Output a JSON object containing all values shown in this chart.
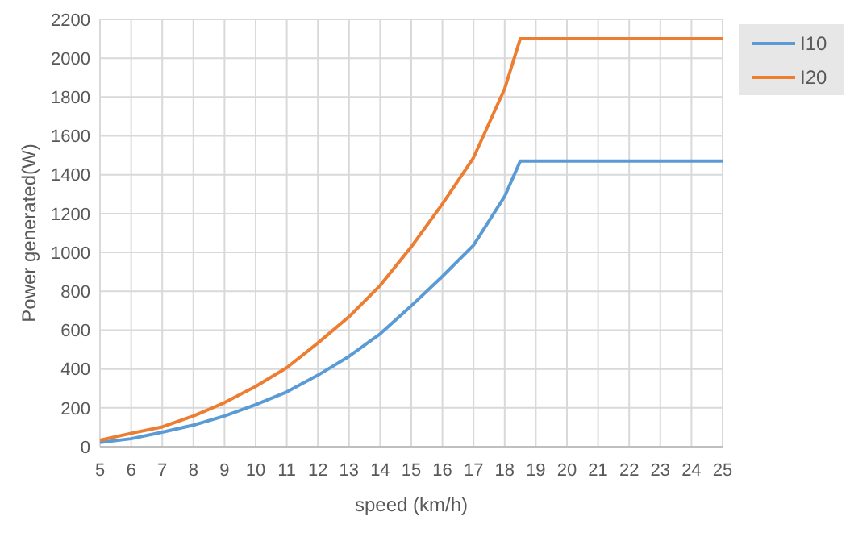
{
  "chart_data": {
    "type": "line",
    "xlabel": "speed (km/h)",
    "ylabel": "Power generated(W)",
    "xlim": [
      5,
      25
    ],
    "xticks": [
      5,
      6,
      7,
      8,
      9,
      10,
      11,
      12,
      13,
      14,
      15,
      16,
      17,
      18,
      19,
      20,
      21,
      22,
      23,
      24,
      25
    ],
    "ylim": [
      0,
      2200
    ],
    "yticks": [
      0,
      200,
      400,
      600,
      800,
      1000,
      1200,
      1400,
      1600,
      1800,
      2000,
      2200
    ],
    "grid": true,
    "legend": "top right",
    "marker": "none",
    "line_style": "solid",
    "series": [
      {
        "name": "I10",
        "color": "#5b9bd5",
        "x": [
          5,
          6,
          7,
          8,
          9,
          10,
          11,
          12,
          13,
          14,
          15,
          16,
          17,
          18,
          18.5,
          25
        ],
        "values": [
          22,
          41,
          75,
          111,
          158,
          216,
          282,
          368,
          465,
          581,
          725,
          877,
          1037,
          1289,
          1470,
          1470
        ]
      },
      {
        "name": "I20",
        "color": "#ed7d31",
        "x": [
          5,
          6,
          7,
          8,
          9,
          10,
          11,
          12,
          13,
          14,
          15,
          16,
          17,
          18,
          18.5,
          25
        ],
        "values": [
          33,
          69,
          102,
          158,
          227,
          310,
          407,
          534,
          669,
          830,
          1029,
          1250,
          1488,
          1843,
          2100,
          2100
        ]
      }
    ]
  }
}
